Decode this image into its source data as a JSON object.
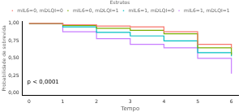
{
  "chart_data": {
    "type": "line",
    "legend_title": "Estratos",
    "x_label": "Tempo",
    "y_label": "Probabilidade de sobrevida",
    "annotation": "p < 0,0001",
    "x": [
      0,
      1,
      2,
      3,
      4,
      5,
      6
    ],
    "series": [
      {
        "name": "mIL6=0, mDLQI=0",
        "color": "#F8766D",
        "values": [
          1,
          0.98,
          0.96,
          0.95,
          0.88,
          0.7,
          0.65
        ]
      },
      {
        "name": "mIL6=0, mDLQI=1",
        "color": "#7CAE00",
        "values": [
          1,
          0.97,
          0.93,
          0.9,
          0.85,
          0.65,
          0.55
        ]
      },
      {
        "name": "mIL6=1, mDLQI=0",
        "color": "#00BFC4",
        "values": [
          1,
          0.95,
          0.87,
          0.82,
          0.75,
          0.58,
          0.53
        ]
      },
      {
        "name": "mIL6=1, mDLQI=1",
        "color": "#C77CFF",
        "values": [
          1,
          0.88,
          0.78,
          0.7,
          0.65,
          0.5,
          0.28
        ]
      }
    ],
    "line_style": "step",
    "xlim": [
      -0.2,
      6.2
    ],
    "xticks": [
      0,
      1,
      2,
      3,
      4,
      5,
      6
    ],
    "ylim": [
      -0.03,
      1.03
    ],
    "yticks": [
      {
        "value": 0,
        "label": "0,00"
      },
      {
        "value": 0.25,
        "label": "0,25"
      },
      {
        "value": 0.5,
        "label": "0,50"
      },
      {
        "value": 0.75,
        "label": "0,75"
      },
      {
        "value": 1,
        "label": "1,00"
      }
    ],
    "grid": false,
    "legend": "top"
  }
}
